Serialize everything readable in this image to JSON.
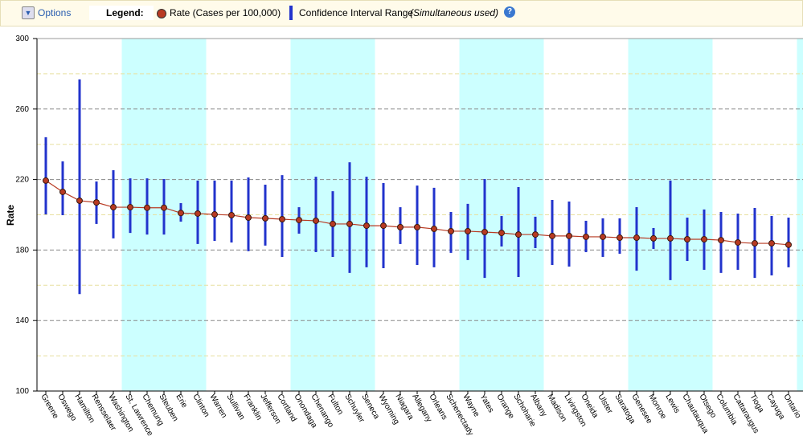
{
  "toolbar": {
    "options": "Options",
    "legend_label": "Legend:",
    "help": "?"
  },
  "chart_data": {
    "type": "errorbar",
    "ylabel": "Rate",
    "categories": [
      "Greene",
      "Oswego",
      "Hamilton",
      "Rensselaer",
      "Washington",
      "St. Lawrence",
      "Chemung",
      "Steuben",
      "Erie",
      "Clinton",
      "Warren",
      "Sullivan",
      "Franklin",
      "Jefferson",
      "Cortland",
      "Onondaga",
      "Chenango",
      "Fulton",
      "Schuyler",
      "Seneca",
      "Wyoming",
      "Niagara",
      "Allegany",
      "Orleans",
      "Schenectady",
      "Wayne",
      "Yates",
      "Orange",
      "Schoharie",
      "Albany",
      "Madison",
      "Livingston",
      "Oneida",
      "Ulster",
      "Saratoga",
      "Genesee",
      "Monroe",
      "Lewis",
      "Chautauqua",
      "Otsego",
      "Columbia",
      "Cattaraugus",
      "Tioga",
      "Cayuga",
      "Ontario"
    ],
    "series": [
      {
        "name": "Rate (Cases per 100,000)",
        "color": "#b83a22",
        "values": [
          219.4,
          213,
          208,
          207,
          204.3,
          204.3,
          204,
          204,
          201,
          200.7,
          200.2,
          199.8,
          198.4,
          198,
          197.5,
          197,
          196.6,
          194.8,
          194.8,
          193.8,
          193.8,
          193,
          193,
          192,
          190.7,
          190.7,
          190.2,
          189.7,
          188.8,
          188.8,
          188,
          188,
          187.5,
          187.5,
          187,
          187,
          186.6,
          186.6,
          186.1,
          186.1,
          185.6,
          184.3,
          183.8,
          183.8,
          183
        ]
      }
    ],
    "intervals": {
      "name": "Confidence Interval Range",
      "note": "(Simultaneous used)",
      "color": "#2233cc",
      "low": [
        200.2,
        199.8,
        155,
        194.8,
        186.6,
        189.7,
        188.8,
        188.8,
        196.1,
        183.4,
        185.2,
        184.3,
        179.3,
        182.5,
        176.1,
        189.3,
        178.8,
        176.1,
        167,
        170.2,
        169.7,
        183.4,
        171.5,
        170.2,
        178.4,
        174.3,
        164.2,
        182,
        164.7,
        181.1,
        171.5,
        170.6,
        178.8,
        176.1,
        177.9,
        168.3,
        180.6,
        162.9,
        173.8,
        168.8,
        167,
        168.8,
        164.2,
        165.6,
        170.2
      ],
      "high": [
        244,
        230.3,
        276.8,
        218.9,
        225.3,
        220.7,
        220.7,
        220.3,
        206.6,
        219.4,
        219.4,
        219.4,
        221.2,
        217.1,
        222.5,
        204.3,
        221.6,
        213.4,
        229.8,
        221.6,
        218,
        204.3,
        216.6,
        215.3,
        201.6,
        206.2,
        220.3,
        199.3,
        215.7,
        198.9,
        208.4,
        207.5,
        196.6,
        198,
        198,
        204.3,
        192.5,
        219.4,
        198.4,
        203,
        201.6,
        200.7,
        203.9,
        199.3,
        198.4
      ]
    },
    "ylim": [
      100,
      300
    ],
    "yticks": [
      100,
      140,
      180,
      220,
      260,
      300
    ],
    "yminor": [
      120,
      160,
      200,
      240,
      280
    ],
    "band_group": 5,
    "band_color": "#ccffff",
    "grid": true
  }
}
